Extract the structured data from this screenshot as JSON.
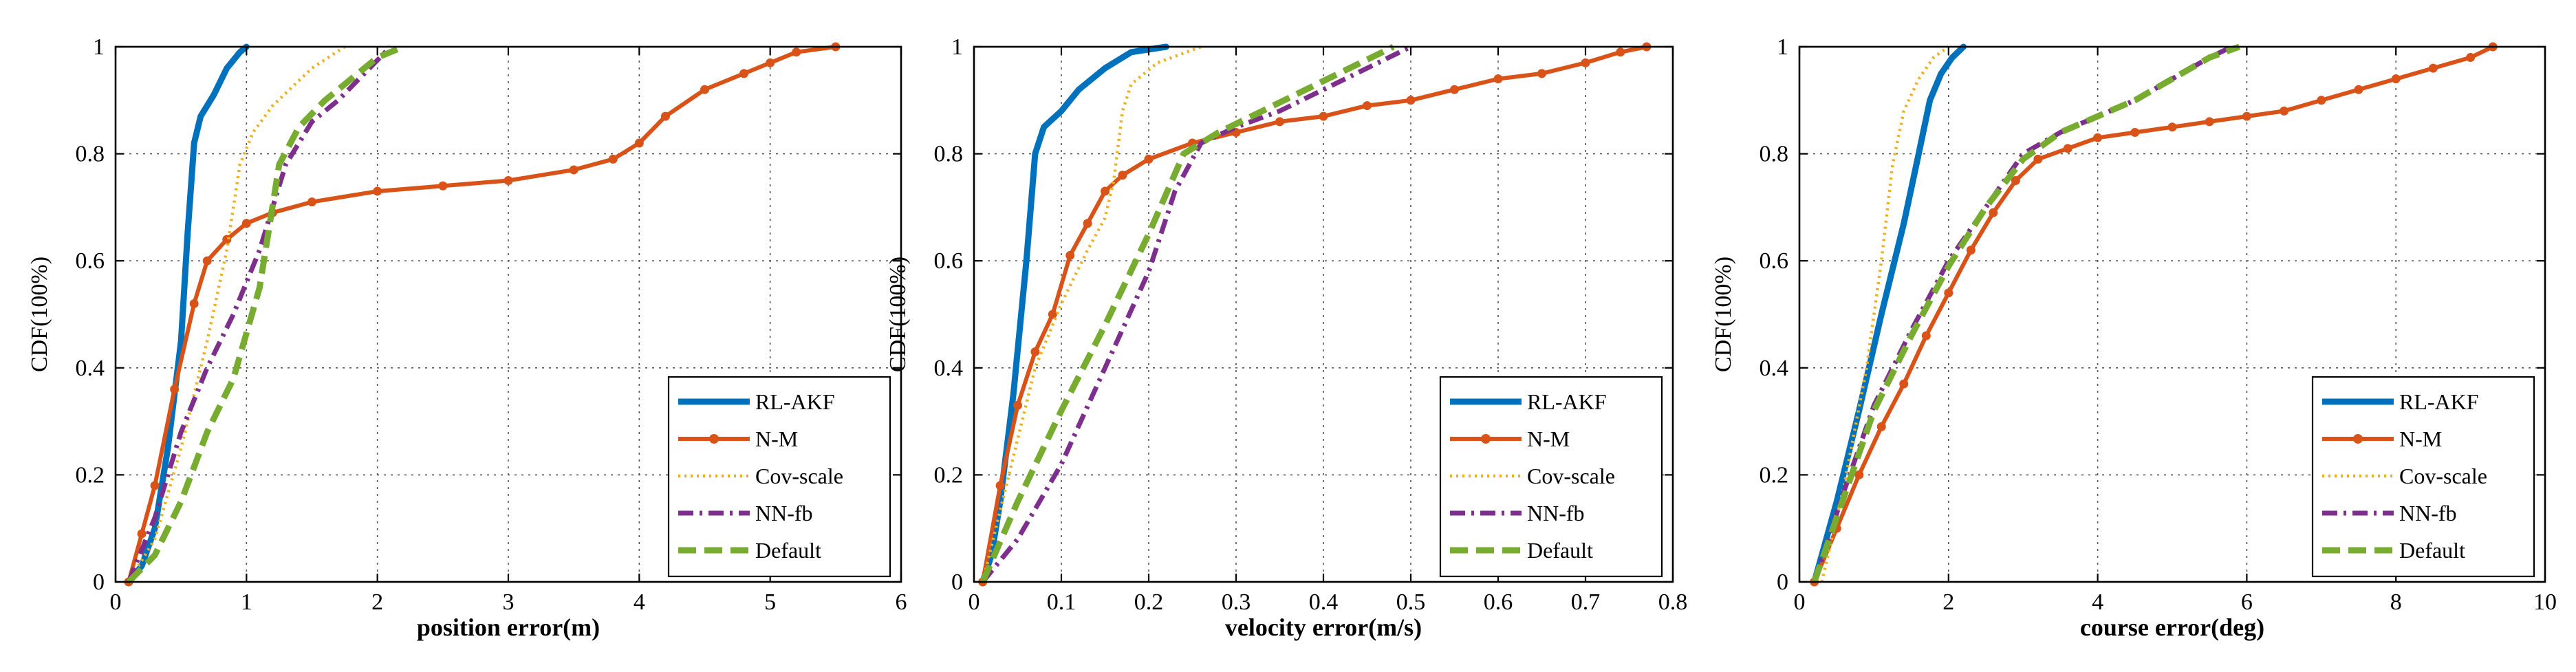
{
  "colors": {
    "RL-AKF": "#0072BD",
    "N-M": "#D95319",
    "Cov-scale": "#EDB120",
    "NN-fb": "#7E2F8E",
    "Default": "#77AC30"
  },
  "chart_data": [
    {
      "type": "line",
      "title": "",
      "xlabel": "position error(m)",
      "ylabel": "CDF(100%)",
      "xlim": [
        0,
        6
      ],
      "ylim": [
        0,
        1
      ],
      "xticks": [
        0,
        1,
        2,
        3,
        4,
        5,
        6
      ],
      "yticks": [
        0,
        0.2,
        0.4,
        0.6,
        0.8,
        1
      ],
      "xtick_labels": [
        "0",
        "1",
        "2",
        "3",
        "4",
        "5",
        "6"
      ],
      "ytick_labels": [
        "0",
        "0.2",
        "0.4",
        "0.6",
        "0.8",
        "1"
      ],
      "grid": true,
      "legend_position": "bottom-right",
      "series": [
        {
          "name": "RL-AKF",
          "x": [
            0.1,
            0.2,
            0.3,
            0.4,
            0.5,
            0.55,
            0.6,
            0.65,
            0.75,
            0.85,
            0.95,
            1.0
          ],
          "y": [
            0.0,
            0.03,
            0.1,
            0.25,
            0.45,
            0.65,
            0.82,
            0.87,
            0.91,
            0.96,
            0.99,
            1.0
          ]
        },
        {
          "name": "N-M",
          "x": [
            0.1,
            0.2,
            0.3,
            0.45,
            0.6,
            0.7,
            0.85,
            1.0,
            1.2,
            1.5,
            2.0,
            2.5,
            3.0,
            3.5,
            3.8,
            4.0,
            4.2,
            4.5,
            4.8,
            5.0,
            5.2,
            5.5
          ],
          "y": [
            0.0,
            0.09,
            0.18,
            0.36,
            0.52,
            0.6,
            0.64,
            0.67,
            0.69,
            0.71,
            0.73,
            0.74,
            0.75,
            0.77,
            0.79,
            0.82,
            0.87,
            0.92,
            0.95,
            0.97,
            0.99,
            1.0
          ]
        },
        {
          "name": "Cov-scale",
          "x": [
            0.1,
            0.3,
            0.5,
            0.7,
            0.85,
            0.95,
            1.05,
            1.2,
            1.5,
            1.75
          ],
          "y": [
            0.0,
            0.08,
            0.25,
            0.45,
            0.62,
            0.78,
            0.84,
            0.89,
            0.96,
            1.0
          ]
        },
        {
          "name": "NN-fb",
          "x": [
            0.1,
            0.3,
            0.5,
            0.7,
            0.9,
            1.1,
            1.3,
            1.5,
            1.7,
            1.9,
            2.1
          ],
          "y": [
            0.0,
            0.12,
            0.28,
            0.4,
            0.5,
            0.62,
            0.78,
            0.86,
            0.9,
            0.95,
            1.0
          ]
        },
        {
          "name": "Default",
          "x": [
            0.1,
            0.3,
            0.5,
            0.7,
            0.9,
            1.1,
            1.25,
            1.4,
            1.6,
            1.8,
            2.0,
            2.2
          ],
          "y": [
            0.0,
            0.05,
            0.15,
            0.28,
            0.38,
            0.55,
            0.78,
            0.85,
            0.9,
            0.94,
            0.98,
            1.0
          ]
        }
      ],
      "legend": [
        "RL-AKF",
        "N-M",
        "Cov-scale",
        "NN-fb",
        "Default"
      ]
    },
    {
      "type": "line",
      "title": "",
      "xlabel": "velocity error(m/s)",
      "ylabel": "CDF(100%)",
      "xlim": [
        0,
        0.8
      ],
      "ylim": [
        0,
        1
      ],
      "xticks": [
        0,
        0.1,
        0.2,
        0.3,
        0.4,
        0.5,
        0.6,
        0.7,
        0.8
      ],
      "yticks": [
        0,
        0.2,
        0.4,
        0.6,
        0.8,
        1
      ],
      "xtick_labels": [
        "0",
        "0.1",
        "0.2",
        "0.3",
        "0.4",
        "0.5",
        "0.6",
        "0.7",
        "0.8"
      ],
      "ytick_labels": [
        "0",
        "0.2",
        "0.4",
        "0.6",
        "0.8",
        "1"
      ],
      "grid": true,
      "legend_position": "bottom-right",
      "series": [
        {
          "name": "RL-AKF",
          "x": [
            0.01,
            0.02,
            0.03,
            0.045,
            0.06,
            0.07,
            0.08,
            0.1,
            0.12,
            0.15,
            0.18,
            0.22
          ],
          "y": [
            0.0,
            0.05,
            0.15,
            0.35,
            0.6,
            0.8,
            0.85,
            0.88,
            0.92,
            0.96,
            0.99,
            1.0
          ]
        },
        {
          "name": "N-M",
          "x": [
            0.01,
            0.03,
            0.05,
            0.07,
            0.09,
            0.11,
            0.13,
            0.15,
            0.17,
            0.2,
            0.25,
            0.3,
            0.35,
            0.4,
            0.45,
            0.5,
            0.55,
            0.6,
            0.65,
            0.7,
            0.74,
            0.77
          ],
          "y": [
            0.0,
            0.18,
            0.33,
            0.43,
            0.5,
            0.61,
            0.67,
            0.73,
            0.76,
            0.79,
            0.82,
            0.84,
            0.86,
            0.87,
            0.89,
            0.9,
            0.92,
            0.94,
            0.95,
            0.97,
            0.99,
            1.0
          ]
        },
        {
          "name": "Cov-scale",
          "x": [
            0.01,
            0.04,
            0.07,
            0.1,
            0.13,
            0.15,
            0.16,
            0.17,
            0.18,
            0.21,
            0.26
          ],
          "y": [
            0.0,
            0.2,
            0.4,
            0.52,
            0.62,
            0.68,
            0.75,
            0.88,
            0.93,
            0.97,
            1.0
          ]
        },
        {
          "name": "NN-fb",
          "x": [
            0.01,
            0.05,
            0.1,
            0.15,
            0.2,
            0.23,
            0.26,
            0.3,
            0.35,
            0.4,
            0.45,
            0.5
          ],
          "y": [
            0.0,
            0.08,
            0.22,
            0.4,
            0.58,
            0.73,
            0.82,
            0.85,
            0.88,
            0.92,
            0.96,
            1.0
          ]
        },
        {
          "name": "Default",
          "x": [
            0.01,
            0.05,
            0.1,
            0.15,
            0.2,
            0.24,
            0.28,
            0.33,
            0.38,
            0.43,
            0.48
          ],
          "y": [
            0.0,
            0.15,
            0.32,
            0.48,
            0.65,
            0.8,
            0.84,
            0.88,
            0.92,
            0.96,
            1.0
          ]
        }
      ],
      "legend": [
        "RL-AKF",
        "N-M",
        "Cov-scale",
        "NN-fb",
        "Default"
      ]
    },
    {
      "type": "line",
      "title": "",
      "xlabel": "course error(deg)",
      "ylabel": "CDF(100%)",
      "xlim": [
        0,
        10
      ],
      "ylim": [
        0,
        1
      ],
      "xticks": [
        0,
        2,
        4,
        6,
        8,
        10
      ],
      "yticks": [
        0,
        0.2,
        0.4,
        0.6,
        0.8,
        1
      ],
      "xtick_labels": [
        "0",
        "2",
        "4",
        "6",
        "8",
        "10"
      ],
      "ytick_labels": [
        "0",
        "0.2",
        "0.4",
        "0.6",
        "0.8",
        "1"
      ],
      "grid": true,
      "legend_position": "bottom-right",
      "series": [
        {
          "name": "RL-AKF",
          "x": [
            0.2,
            0.5,
            0.8,
            1.1,
            1.4,
            1.6,
            1.75,
            1.9,
            2.05,
            2.2
          ],
          "y": [
            0.0,
            0.15,
            0.32,
            0.5,
            0.67,
            0.8,
            0.9,
            0.95,
            0.98,
            1.0
          ]
        },
        {
          "name": "N-M",
          "x": [
            0.2,
            0.5,
            0.8,
            1.1,
            1.4,
            1.7,
            2.0,
            2.3,
            2.6,
            2.9,
            3.2,
            3.6,
            4.0,
            4.5,
            5.0,
            5.5,
            6.0,
            6.5,
            7.0,
            7.5,
            8.0,
            8.5,
            9.0,
            9.3
          ],
          "y": [
            0.0,
            0.1,
            0.2,
            0.29,
            0.37,
            0.46,
            0.54,
            0.62,
            0.69,
            0.75,
            0.79,
            0.81,
            0.83,
            0.84,
            0.85,
            0.86,
            0.87,
            0.88,
            0.9,
            0.92,
            0.94,
            0.96,
            0.98,
            1.0
          ]
        },
        {
          "name": "Cov-scale",
          "x": [
            0.3,
            0.6,
            0.9,
            1.1,
            1.25,
            1.4,
            1.6,
            1.8,
            2.0
          ],
          "y": [
            0.0,
            0.18,
            0.4,
            0.6,
            0.78,
            0.88,
            0.94,
            0.98,
            1.0
          ]
        },
        {
          "name": "NN-fb",
          "x": [
            0.2,
            0.6,
            1.0,
            1.5,
            2.0,
            2.5,
            3.0,
            3.5,
            4.0,
            4.5,
            5.0,
            5.5,
            5.8
          ],
          "y": [
            0.0,
            0.17,
            0.33,
            0.47,
            0.6,
            0.7,
            0.8,
            0.84,
            0.87,
            0.9,
            0.94,
            0.98,
            1.0
          ]
        },
        {
          "name": "Default",
          "x": [
            0.2,
            0.6,
            1.0,
            1.5,
            2.0,
            2.5,
            3.0,
            3.5,
            4.0,
            4.5,
            5.0,
            5.5,
            5.9
          ],
          "y": [
            0.0,
            0.16,
            0.32,
            0.46,
            0.59,
            0.7,
            0.79,
            0.84,
            0.87,
            0.9,
            0.94,
            0.98,
            1.0
          ]
        }
      ],
      "legend": [
        "RL-AKF",
        "N-M",
        "Cov-scale",
        "NN-fb",
        "Default"
      ]
    }
  ]
}
